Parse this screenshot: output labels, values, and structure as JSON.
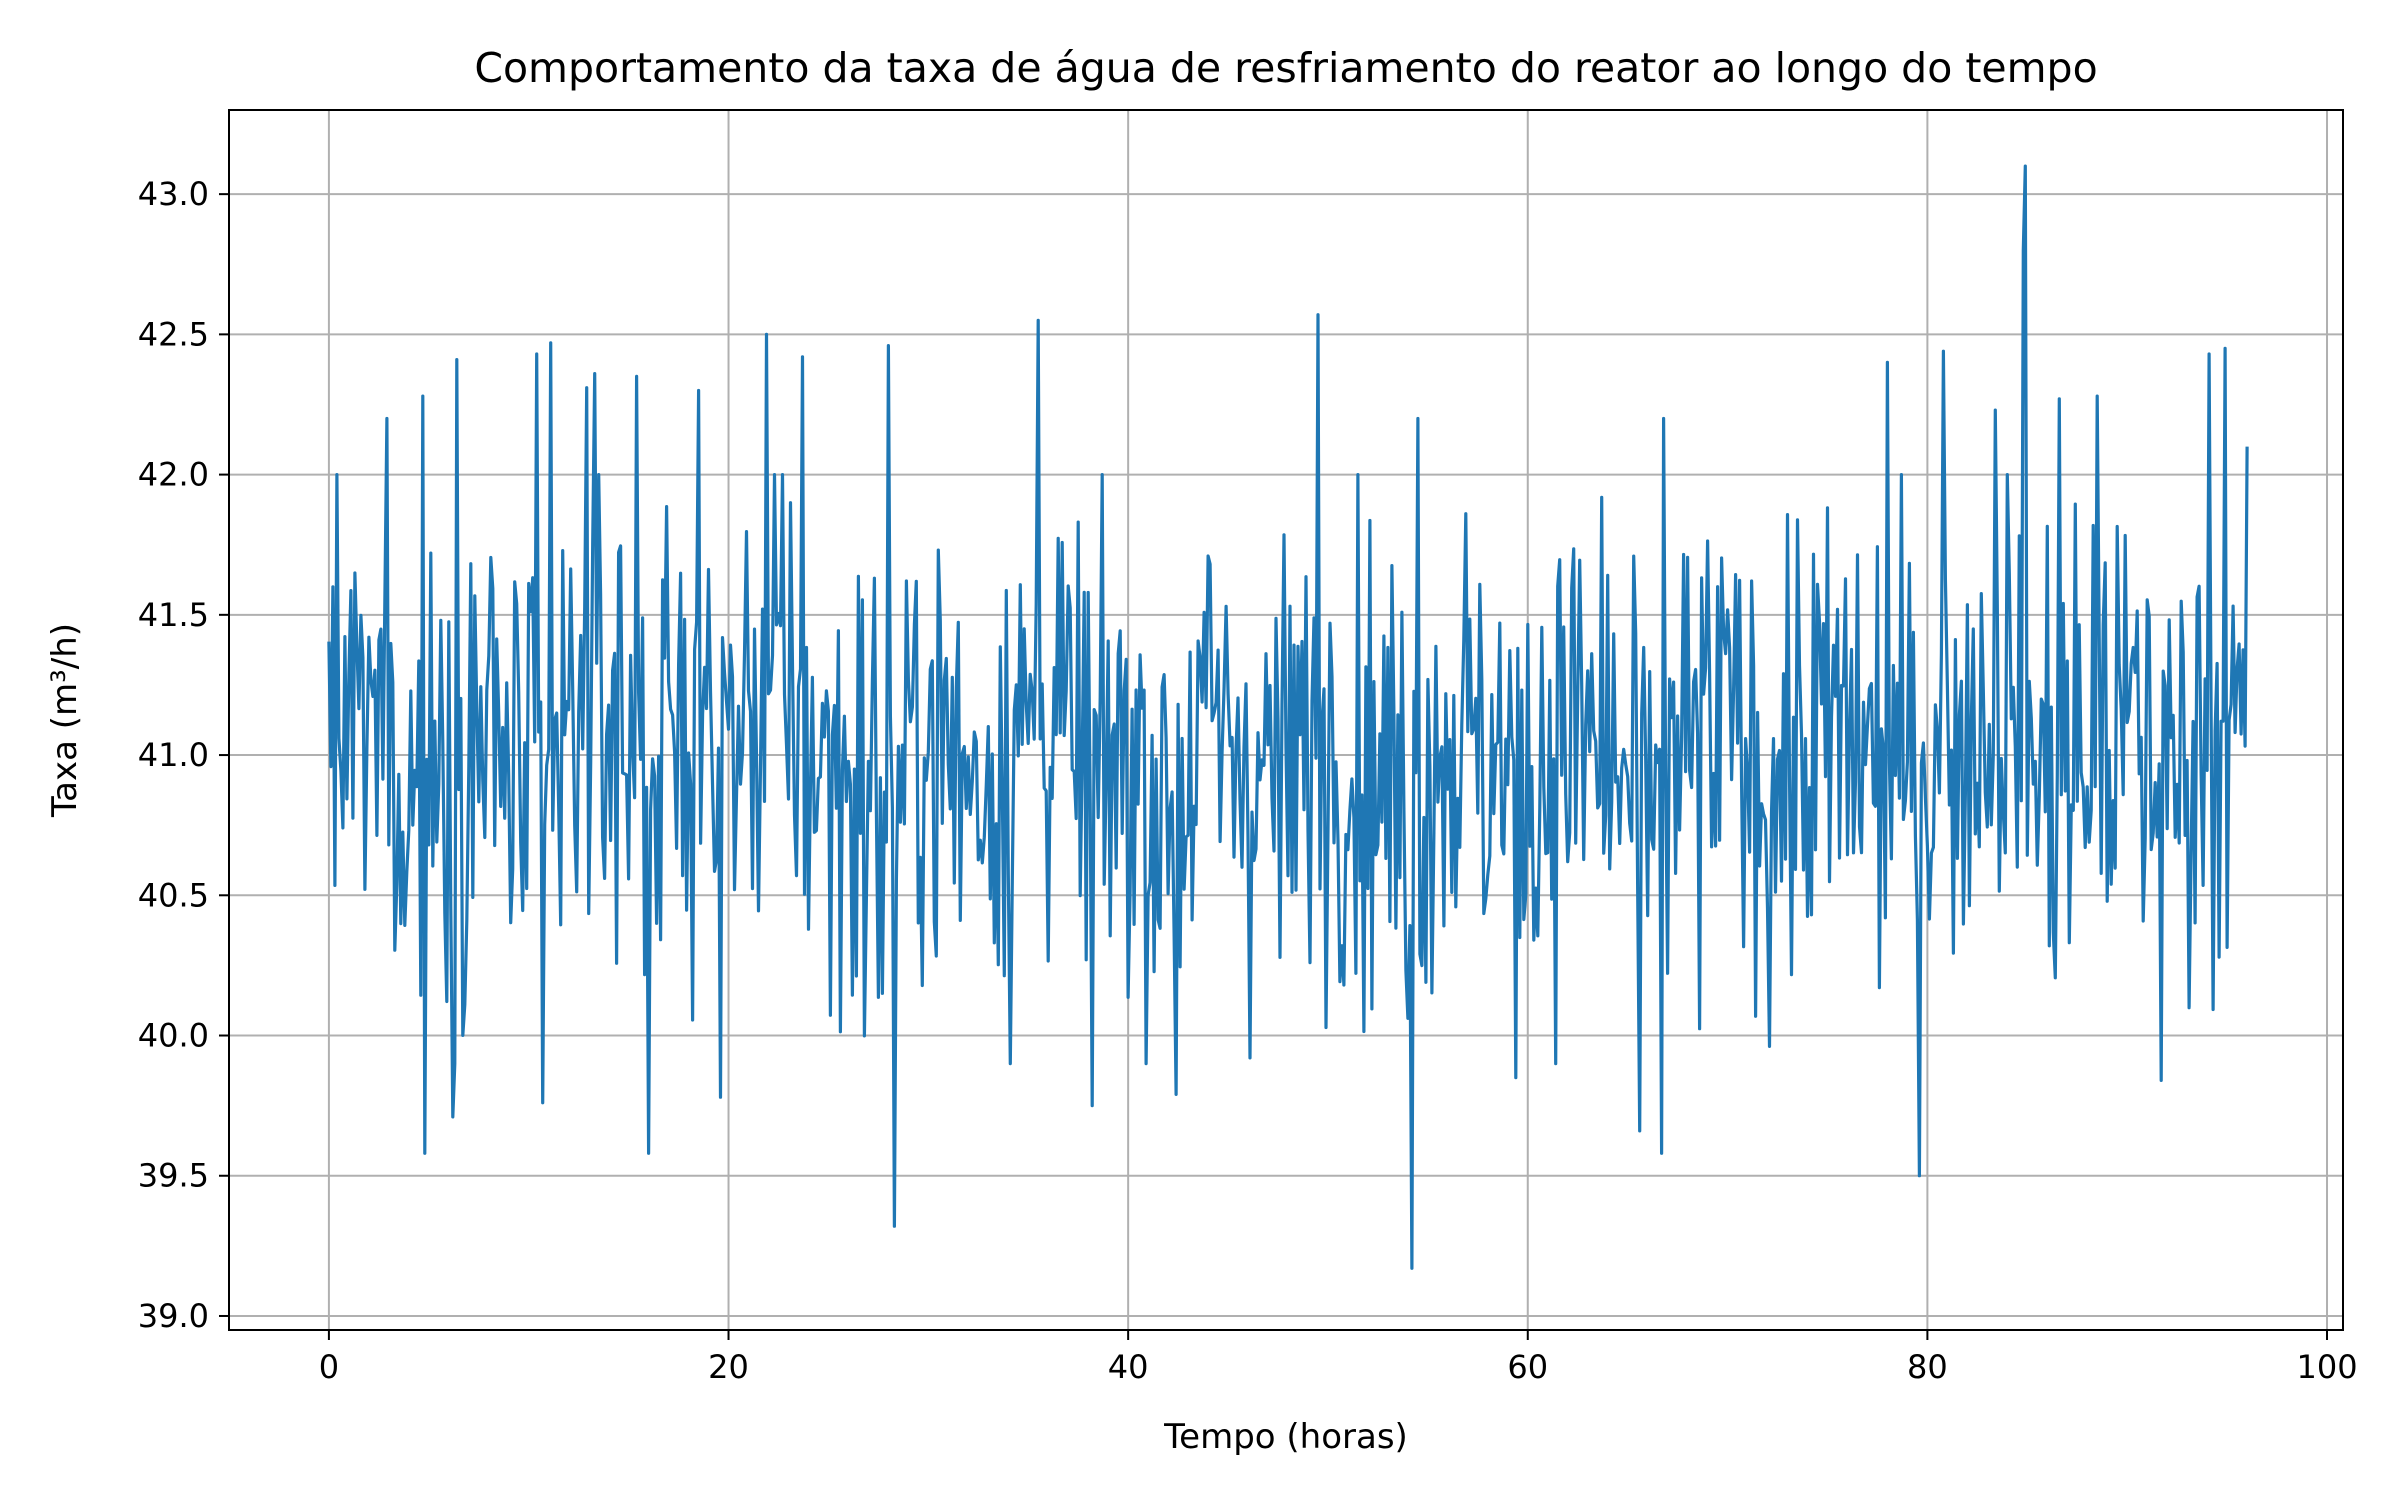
{
  "chart_data": {
    "type": "line",
    "title": "Comportamento da taxa de água de resfriamento do reator ao longo do tempo",
    "xlabel": "Tempo (horas)",
    "ylabel": "Taxa (m³/h)",
    "xlim": [
      -5,
      100.8
    ],
    "ylim": [
      38.95,
      43.3
    ],
    "x_ticks": [
      0,
      20,
      40,
      60,
      80,
      100
    ],
    "x_tick_labels": [
      "0",
      "20",
      "40",
      "60",
      "80",
      "100"
    ],
    "y_ticks": [
      39.0,
      39.5,
      40.0,
      40.5,
      41.0,
      41.5,
      42.0,
      42.5,
      43.0
    ],
    "y_tick_labels": [
      "39.0",
      "39.5",
      "40.0",
      "40.5",
      "41.0",
      "41.5",
      "42.0",
      "42.5",
      "43.0"
    ],
    "grid": true,
    "series": [
      {
        "color": "#1f77b4",
        "x_start": 0,
        "x_step": 0.1,
        "summary": {
          "mean": 41.0,
          "min": 39.17,
          "max": 43.1,
          "points": 961
        },
        "values_sample_every_2h": [
          [
            0,
            41.05
          ],
          [
            2,
            41.1
          ],
          [
            4,
            40.9
          ],
          [
            6,
            41.0
          ],
          [
            8,
            41.1
          ],
          [
            10,
            40.8
          ],
          [
            12,
            41.0
          ],
          [
            14,
            41.2
          ],
          [
            16,
            40.9
          ],
          [
            18,
            41.1
          ],
          [
            20,
            41.0
          ],
          [
            22,
            41.3
          ],
          [
            24,
            41.0
          ],
          [
            26,
            40.9
          ],
          [
            28,
            40.8
          ],
          [
            30,
            41.1
          ],
          [
            32,
            40.9
          ],
          [
            34,
            41.0
          ],
          [
            36,
            41.2
          ],
          [
            38,
            40.9
          ],
          [
            40,
            41.0
          ],
          [
            42,
            40.8
          ],
          [
            44,
            41.1
          ],
          [
            46,
            41.0
          ],
          [
            48,
            40.9
          ],
          [
            50,
            41.1
          ],
          [
            52,
            41.0
          ],
          [
            54,
            40.8
          ],
          [
            56,
            41.1
          ],
          [
            58,
            41.0
          ],
          [
            60,
            40.9
          ],
          [
            62,
            41.1
          ],
          [
            64,
            41.0
          ],
          [
            66,
            40.7
          ],
          [
            68,
            41.0
          ],
          [
            70,
            41.1
          ],
          [
            72,
            40.9
          ],
          [
            74,
            41.0
          ],
          [
            76,
            41.1
          ],
          [
            78,
            40.9
          ],
          [
            80,
            41.0
          ],
          [
            82,
            41.1
          ],
          [
            84,
            41.3
          ],
          [
            86,
            40.9
          ],
          [
            88,
            41.0
          ],
          [
            90,
            41.1
          ],
          [
            92,
            40.9
          ],
          [
            94,
            41.1
          ],
          [
            96,
            41.0
          ]
        ],
        "spikes": [
          [
            0.2,
            41.6
          ],
          [
            2.9,
            42.2
          ],
          [
            4.7,
            42.28
          ],
          [
            4.8,
            39.58
          ],
          [
            6.2,
            39.71
          ],
          [
            6.4,
            42.41
          ],
          [
            10.4,
            42.43
          ],
          [
            10.7,
            39.76
          ],
          [
            11.1,
            42.47
          ],
          [
            12.9,
            42.31
          ],
          [
            13.3,
            42.36
          ],
          [
            15.4,
            42.35
          ],
          [
            16.0,
            39.58
          ],
          [
            18.5,
            42.3
          ],
          [
            19.6,
            39.78
          ],
          [
            21.9,
            42.5
          ],
          [
            23.7,
            42.42
          ],
          [
            28.0,
            42.46
          ],
          [
            28.3,
            39.32
          ],
          [
            35.5,
            42.55
          ],
          [
            38.2,
            39.75
          ],
          [
            42.4,
            39.79
          ],
          [
            49.5,
            42.57
          ],
          [
            54.2,
            39.17
          ],
          [
            54.5,
            42.2
          ],
          [
            59.4,
            39.85
          ],
          [
            65.6,
            39.66
          ],
          [
            66.7,
            39.58
          ],
          [
            66.8,
            42.2
          ],
          [
            78.0,
            42.4
          ],
          [
            79.6,
            39.5
          ],
          [
            80.8,
            42.44
          ],
          [
            83.4,
            42.23
          ],
          [
            84.8,
            42.8
          ],
          [
            84.9,
            43.1
          ],
          [
            86.6,
            42.27
          ],
          [
            88.5,
            42.28
          ],
          [
            91.7,
            39.84
          ],
          [
            94.1,
            42.43
          ],
          [
            94.9,
            42.45
          ],
          [
            96.0,
            42.1
          ]
        ]
      }
    ]
  }
}
